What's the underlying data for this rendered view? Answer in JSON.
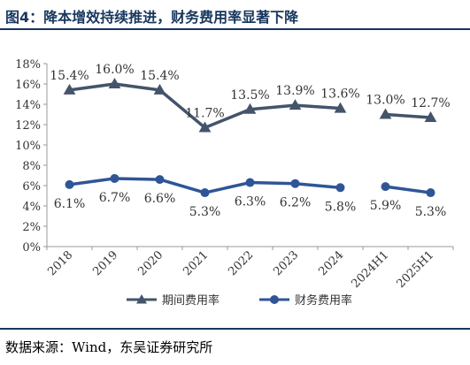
{
  "header": {
    "title": "图4：降本增效持续推进，财务费用率显著下降"
  },
  "footer": {
    "source": "数据来源：Wind，东吴证券研究所"
  },
  "chart_data": {
    "type": "line",
    "categories": [
      "2018",
      "2019",
      "2020",
      "2021",
      "2022",
      "2023",
      "2024",
      "2024H1",
      "2025H1"
    ],
    "y_ticks": [
      "0%",
      "2%",
      "4%",
      "6%",
      "8%",
      "10%",
      "12%",
      "14%",
      "16%",
      "18%"
    ],
    "ylim": [
      0,
      18
    ],
    "grid": false,
    "legend_position": "bottom",
    "series": [
      {
        "name": "期间费用率",
        "values": [
          15.4,
          16.0,
          15.4,
          11.7,
          13.5,
          13.9,
          13.6,
          13.0,
          12.7
        ],
        "labels": [
          "15.4%",
          "16.0%",
          "15.4%",
          "11.7%",
          "13.5%",
          "13.9%",
          "13.6%",
          "13.0%",
          "12.7%"
        ],
        "marker": "triangle",
        "color": "#44546a",
        "segments": [
          [
            0,
            6
          ],
          [
            7,
            8
          ]
        ],
        "label_position": "above"
      },
      {
        "name": "财务费用率",
        "values": [
          6.1,
          6.7,
          6.6,
          5.3,
          6.3,
          6.2,
          5.8,
          5.9,
          5.3
        ],
        "labels": [
          "6.1%",
          "6.7%",
          "6.6%",
          "5.3%",
          "6.3%",
          "6.2%",
          "5.8%",
          "5.9%",
          "5.3%"
        ],
        "marker": "circle",
        "color": "#2f5597",
        "segments": [
          [
            0,
            6
          ],
          [
            7,
            8
          ]
        ],
        "label_position": "below"
      }
    ]
  }
}
